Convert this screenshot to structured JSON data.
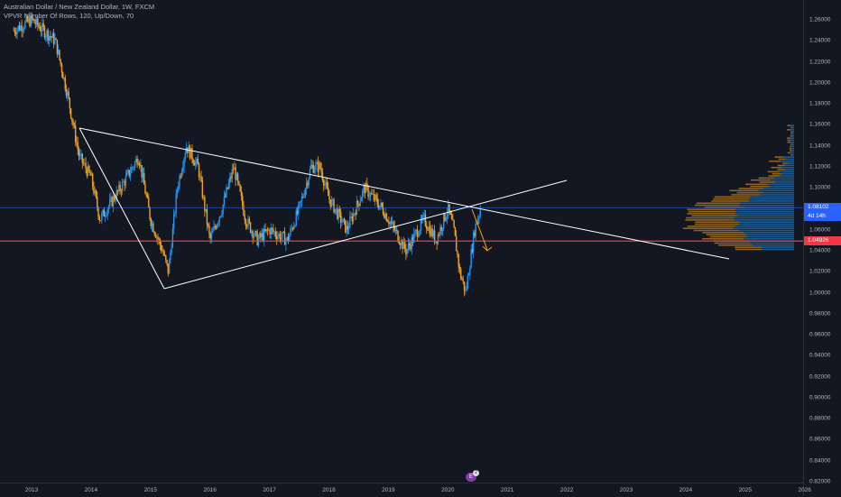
{
  "legend": {
    "symbol_line": "Australian Dollar / New Zealand Dollar, 1W, FXCM",
    "indicator_line": "VPVR Number Of Rows, 120, Up/Down, 70"
  },
  "price_axis": {
    "ticks": [
      "1.26000",
      "1.24000",
      "1.22000",
      "1.20000",
      "1.18000",
      "1.16000",
      "1.14000",
      "1.12000",
      "1.10000",
      "1.08102",
      "1.06000",
      "1.04926",
      "1.04000",
      "1.02000",
      "1.00000",
      "0.98000",
      "0.96000",
      "0.94000",
      "0.92000",
      "0.90000",
      "0.88000",
      "0.86000",
      "0.84000",
      "0.82000"
    ],
    "current_price": "1.08102",
    "countdown": "4d 14h",
    "red_level": "1.04926"
  },
  "time_axis": {
    "ticks": [
      "2013",
      "2014",
      "2015",
      "2016",
      "2017",
      "2018",
      "2019",
      "2020",
      "2021",
      "2022",
      "2023",
      "2024",
      "2025",
      "2026"
    ]
  },
  "marker": {
    "label": "E",
    "count": "2"
  },
  "colors": {
    "background": "#131722",
    "up_candle": "#2196f3",
    "down_candle": "#f7a21b",
    "red_line": "#f23645",
    "blue_line": "#2962ff",
    "trendline": "#ffffff",
    "arrow": "#f7a21b"
  }
}
